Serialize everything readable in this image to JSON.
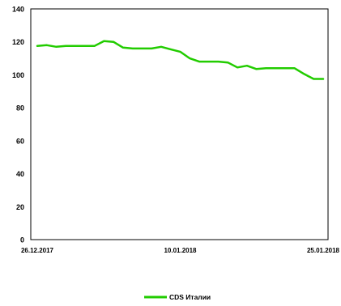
{
  "chart_data": {
    "type": "line",
    "title": "",
    "xlabel": "",
    "ylabel": "",
    "x": [
      "26.12.2017",
      "27.12.2017",
      "28.12.2017",
      "29.12.2017",
      "30.12.2017",
      "31.12.2017",
      "01.01.2018",
      "02.01.2018",
      "03.01.2018",
      "04.01.2018",
      "05.01.2018",
      "06.01.2018",
      "07.01.2018",
      "08.01.2018",
      "09.01.2018",
      "10.01.2018",
      "11.01.2018",
      "12.01.2018",
      "13.01.2018",
      "14.01.2018",
      "15.01.2018",
      "16.01.2018",
      "17.01.2018",
      "18.01.2018",
      "19.01.2018",
      "20.01.2018",
      "21.01.2018",
      "22.01.2018",
      "23.01.2018",
      "24.01.2018",
      "25.01.2018"
    ],
    "x_tick_labels": [
      "26.12.2017",
      "10.01.2018",
      "25.01.2018"
    ],
    "ylim": [
      0,
      140
    ],
    "y_ticks": [
      0,
      20,
      40,
      60,
      80,
      100,
      120,
      140
    ],
    "grid": false,
    "legend_position": "bottom",
    "series": [
      {
        "name": "CDS Италии",
        "color": "#22cc00",
        "values": [
          117.5,
          118,
          117,
          117.5,
          117.5,
          117.5,
          117.5,
          120.5,
          120,
          116.5,
          116,
          116,
          116,
          117,
          115.5,
          114,
          110,
          108,
          108,
          108,
          107.5,
          104.5,
          105.5,
          103.5,
          104,
          104,
          104,
          104,
          100.5,
          97.5,
          97.5
        ]
      }
    ]
  }
}
